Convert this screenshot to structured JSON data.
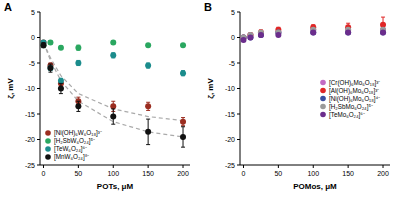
{
  "chart_data": [
    {
      "type": "scatter",
      "title": "A",
      "x_label": "POTs, μM",
      "y_label": "ζ, mV",
      "x": [
        0,
        10,
        25,
        50,
        100,
        150,
        200
      ],
      "xlim": [
        -5,
        210
      ],
      "xticks": [
        0,
        50,
        100,
        150,
        200
      ],
      "ylim": [
        -25,
        5
      ],
      "yticks": [
        -25,
        -20,
        -15,
        -10,
        -5,
        0,
        5
      ],
      "legend": "lower left",
      "marker": "circle",
      "series": [
        {
          "name": "[Ni(OH)₆W₆O₁₈]³⁻",
          "color": "#9b2d20",
          "values": [
            -1,
            -5.5,
            -9,
            -12.5,
            -13.5,
            -13.5,
            -16.5
          ],
          "errors": [
            0.3,
            0.5,
            0.8,
            0.8,
            1,
            0.8,
            0.8
          ]
        },
        {
          "name": "[H₂SbW₆O₂₄]⁵⁻",
          "color": "#2aa760",
          "values": [
            -1.5,
            -1,
            -2,
            -2,
            -1,
            -1.5,
            -1.5
          ],
          "errors": [
            0.3,
            0.3,
            0.3,
            0.5,
            0.3,
            0.3,
            0.3
          ]
        },
        {
          "name": "[TeW₆O₂₄]⁶⁻",
          "color": "#1b8c8c",
          "values": [
            -1,
            -6,
            -8.5,
            -5,
            -3.5,
            -5.5,
            -7
          ],
          "errors": [
            0.3,
            0.5,
            0.5,
            0.5,
            0.5,
            0.5,
            0.5
          ]
        },
        {
          "name": "[MnW₆O₂₄]⁸⁻",
          "color": "#111111",
          "values": [
            -1.5,
            -6,
            -10,
            -13.5,
            -15.5,
            -18.5,
            -19.5
          ],
          "errors": [
            0.5,
            0.8,
            1,
            1,
            1.5,
            2.5,
            2
          ]
        },
        {
          "type": "line",
          "line_style": "dashed",
          "color": "#aaaaaa",
          "values": [
            -1,
            -4,
            -7.5,
            -11,
            -14,
            -15.5,
            -16.3
          ]
        },
        {
          "type": "line",
          "line_style": "dashed",
          "color": "#aaaaaa",
          "values": [
            -1,
            -4.5,
            -8.5,
            -12.5,
            -16.5,
            -18.5,
            -19.5
          ]
        }
      ]
    },
    {
      "type": "scatter",
      "title": "B",
      "x_label": "POMos, μM",
      "y_label": "ζ, mV",
      "x": [
        0,
        10,
        25,
        50,
        100,
        150,
        200
      ],
      "xlim": [
        -5,
        210
      ],
      "xticks": [
        0,
        50,
        100,
        150,
        200
      ],
      "ylim": [
        -25,
        5
      ],
      "yticks": [
        -25,
        -20,
        -15,
        -10,
        -5,
        0,
        5
      ],
      "legend": "right",
      "marker": "circle",
      "series": [
        {
          "name": "[Cr(OH)₆Mo₆O₁₈]³⁻",
          "color": "#c36bc3",
          "values": [
            0,
            0.5,
            0.5,
            1,
            1.5,
            1.5,
            1.5
          ],
          "errors": [
            0.3,
            0.3,
            0.3,
            0.3,
            0.3,
            0.3,
            0.3
          ]
        },
        {
          "name": "[Al(OH)₆Mo₆O₁₈]³⁻",
          "color": "#e02626",
          "values": [
            0,
            0.5,
            1,
            1.5,
            2,
            2,
            2.5
          ],
          "errors": [
            0.3,
            0.3,
            0.5,
            0.5,
            0.5,
            0.8,
            1.5
          ]
        },
        {
          "name": "[Ni(OH)₆Mo₆O₁₈]⁴⁻",
          "color": "#3a4ea0",
          "values": [
            0,
            0,
            0.5,
            1,
            1,
            1,
            1
          ],
          "errors": [
            0.3,
            0.3,
            0.3,
            0.3,
            0.3,
            0.3,
            0.3
          ]
        },
        {
          "name": "[H₂SbMo₆O₂₄]⁵⁻",
          "color": "#9a9a9a",
          "values": [
            0,
            0.5,
            1,
            1,
            1.5,
            1.5,
            1.5
          ],
          "errors": [
            0.3,
            0.3,
            0.3,
            0.3,
            0.3,
            0.3,
            0.3
          ]
        },
        {
          "name": "[TeMo₆O₂₄]⁶⁻",
          "color": "#6b2d8c",
          "values": [
            -0.5,
            0,
            0.5,
            0.5,
            1,
            1,
            1
          ],
          "errors": [
            0.3,
            0.3,
            0.3,
            0.3,
            0.3,
            0.3,
            0.3
          ]
        }
      ]
    }
  ]
}
